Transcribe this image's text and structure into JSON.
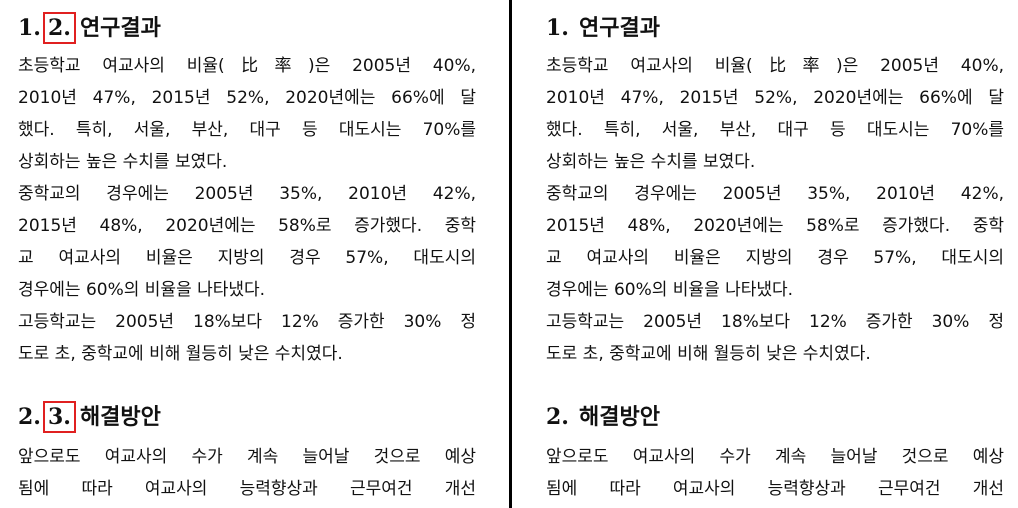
{
  "panels": [
    {
      "sections": [
        {
          "heading": {
            "number": "1.",
            "inserted": "2.",
            "title": "연구결과"
          },
          "paragraphs": [
            [
              "초등학교 여교사의 비율(比率)은 2005년 40%,",
              "2010년 47%, 2015년 52%, 2020년에는 66%에 달",
              "했다. 특히, 서울, 부산, 대구 등 대도시는 70%를",
              "상회하는 높은 수치를 보였다."
            ],
            [
              "중학교의 경우에는 2005년 35%, 2010년 42%,",
              "2015년 48%, 2020년에는 58%로 증가했다. 중학",
              "교 여교사의 비율은 지방의 경우 57%, 대도시의",
              "경우에는 60%의 비율을 나타냈다."
            ],
            [
              "고등학교는 2005년 18%보다 12% 증가한 30% 정",
              "도로 초, 중학교에 비해 월등히 낮은 수치였다."
            ]
          ]
        },
        {
          "heading": {
            "number": "2.",
            "inserted": "3.",
            "title": "해결방안"
          },
          "paragraphs": [
            [
              "앞으로도 여교사의 수가 계속 늘어날 것으로 예상",
              "됨에 따라 여교사의 능력향상과 근무여건 개선"
            ]
          ]
        }
      ]
    },
    {
      "sections": [
        {
          "heading": {
            "number": "1.",
            "title": "연구결과"
          },
          "paragraphs": [
            [
              "초등학교 여교사의 비율(比率)은 2005년 40%,",
              "2010년 47%, 2015년 52%, 2020년에는 66%에 달",
              "했다. 특히, 서울, 부산, 대구 등 대도시는 70%를",
              "상회하는 높은 수치를 보였다."
            ],
            [
              "중학교의 경우에는 2005년 35%, 2010년 42%,",
              "2015년 48%, 2020년에는 58%로 증가했다. 중학",
              "교 여교사의 비율은 지방의 경우 57%, 대도시의",
              "경우에는 60%의 비율을 나타냈다."
            ],
            [
              "고등학교는 2005년 18%보다 12% 증가한 30% 정",
              "도로 초, 중학교에 비해 월등히 낮은 수치였다."
            ]
          ]
        },
        {
          "heading": {
            "number": "2.",
            "title": "해결방안"
          },
          "paragraphs": [
            [
              "앞으로도 여교사의 수가 계속 늘어날 것으로 예상",
              "됨에 따라 여교사의 능력향상과 근무여건 개선"
            ]
          ]
        }
      ]
    }
  ]
}
